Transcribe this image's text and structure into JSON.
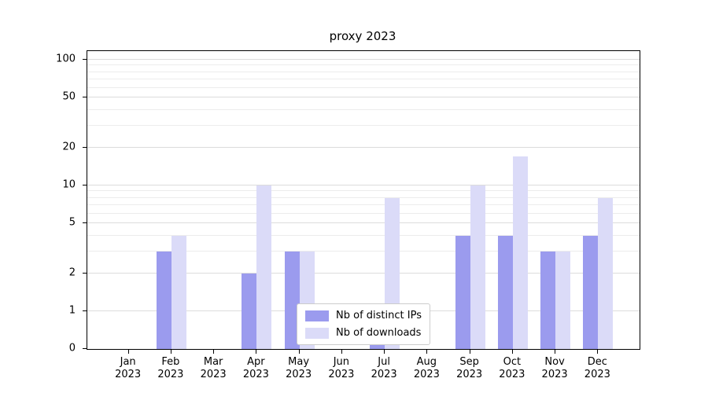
{
  "chart_data": {
    "type": "bar",
    "title": "proxy 2023",
    "categories": [
      "Jan",
      "Feb",
      "Mar",
      "Apr",
      "May",
      "Jun",
      "Jul",
      "Aug",
      "Sep",
      "Oct",
      "Nov",
      "Dec"
    ],
    "year": "2023",
    "series": [
      {
        "name": "Nb of distinct IPs",
        "color": "#9b9bee",
        "values": [
          0,
          3,
          0,
          2,
          3,
          0,
          1,
          0,
          4,
          4,
          3,
          4
        ]
      },
      {
        "name": "Nb of downloads",
        "color": "#dbdbf8",
        "values": [
          0,
          4,
          0,
          10,
          3,
          0,
          8,
          0,
          10,
          17,
          3,
          8
        ]
      }
    ],
    "y_scale": "symlog",
    "y_ticks": [
      0,
      1,
      2,
      5,
      10,
      20,
      50,
      100
    ],
    "y_minor_ticks": [
      3,
      4,
      6,
      7,
      8,
      9,
      30,
      40,
      60,
      70,
      80,
      90
    ],
    "ylim": [
      0,
      110
    ],
    "grid": true,
    "legend_position": "lower center",
    "xlabel": "",
    "ylabel": ""
  }
}
